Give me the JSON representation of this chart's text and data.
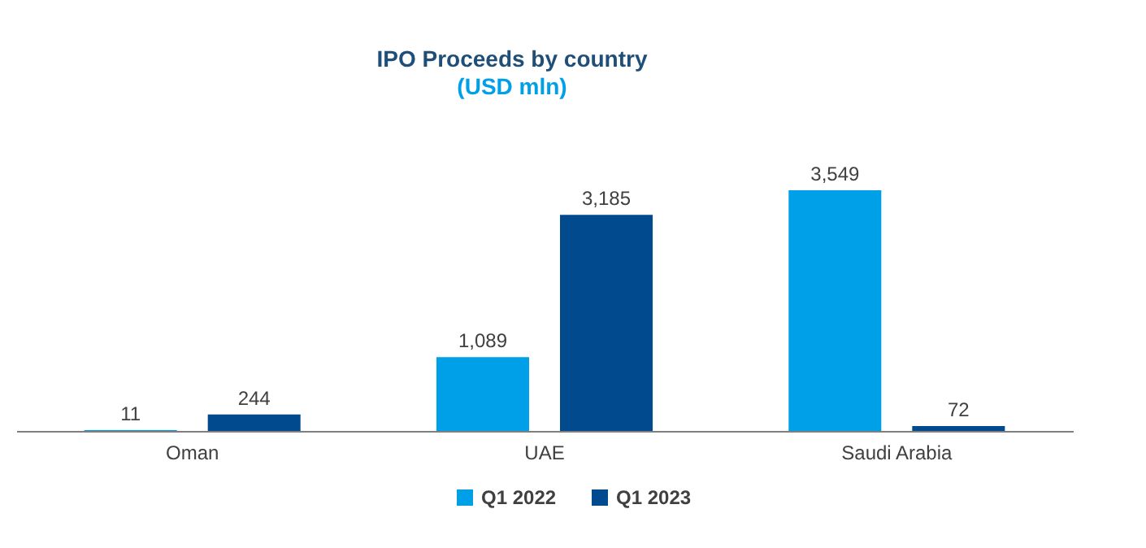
{
  "chart_data": {
    "type": "bar",
    "title": "IPO Proceeds by country",
    "subtitle": "(USD mln)",
    "categories": [
      "Oman",
      "UAE",
      "Saudi Arabia"
    ],
    "series": [
      {
        "name": "Q1 2022",
        "color": "#00a0e9",
        "values": [
          11,
          1089,
          3549
        ],
        "value_labels": [
          "11",
          "1,089",
          "3,549"
        ]
      },
      {
        "name": "Q1 2023",
        "color": "#004a8d",
        "values": [
          244,
          3185,
          72
        ],
        "value_labels": [
          "244",
          "3,185",
          "72"
        ]
      }
    ],
    "legend": "bottom",
    "grid": false
  }
}
